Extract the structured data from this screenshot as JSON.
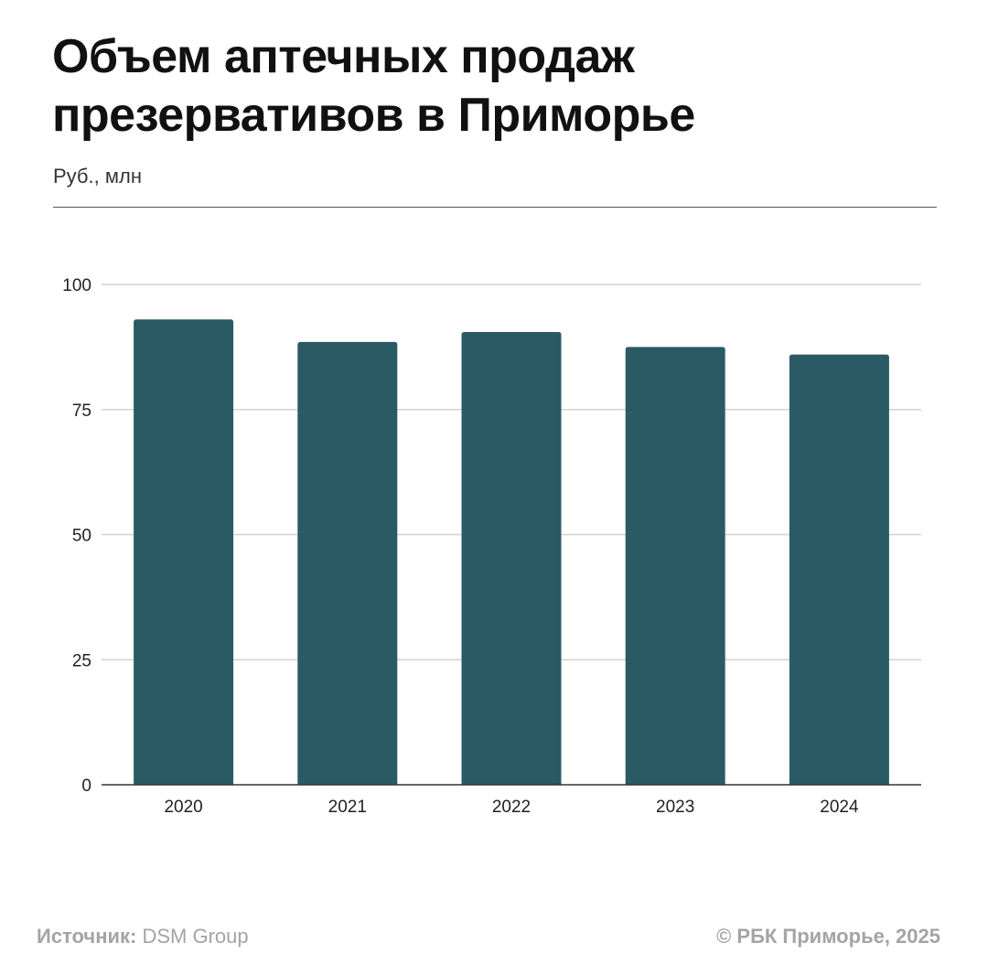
{
  "header": {
    "title": "Объем аптечных продаж презервативов в Приморье",
    "subtitle": "Руб., млн"
  },
  "footer": {
    "source_label": "Источник:",
    "source_value": "DSM Group",
    "copyright": "© РБК Приморье, 2025"
  },
  "colors": {
    "bar": "#2a5b65",
    "grid": "#d2d2d2",
    "axis": "#333333",
    "tick_text": "#222222"
  },
  "chart_data": {
    "type": "bar",
    "title": "Объем аптечных продаж презервативов в Приморье",
    "ylabel": "Руб., млн",
    "xlabel": "",
    "categories": [
      "2020",
      "2021",
      "2022",
      "2023",
      "2024"
    ],
    "values": [
      93,
      88.5,
      90.5,
      87.5,
      86
    ],
    "ylim": [
      0,
      100
    ],
    "yticks": [
      0,
      25,
      50,
      75,
      100
    ],
    "grid": true,
    "legend": "none"
  }
}
